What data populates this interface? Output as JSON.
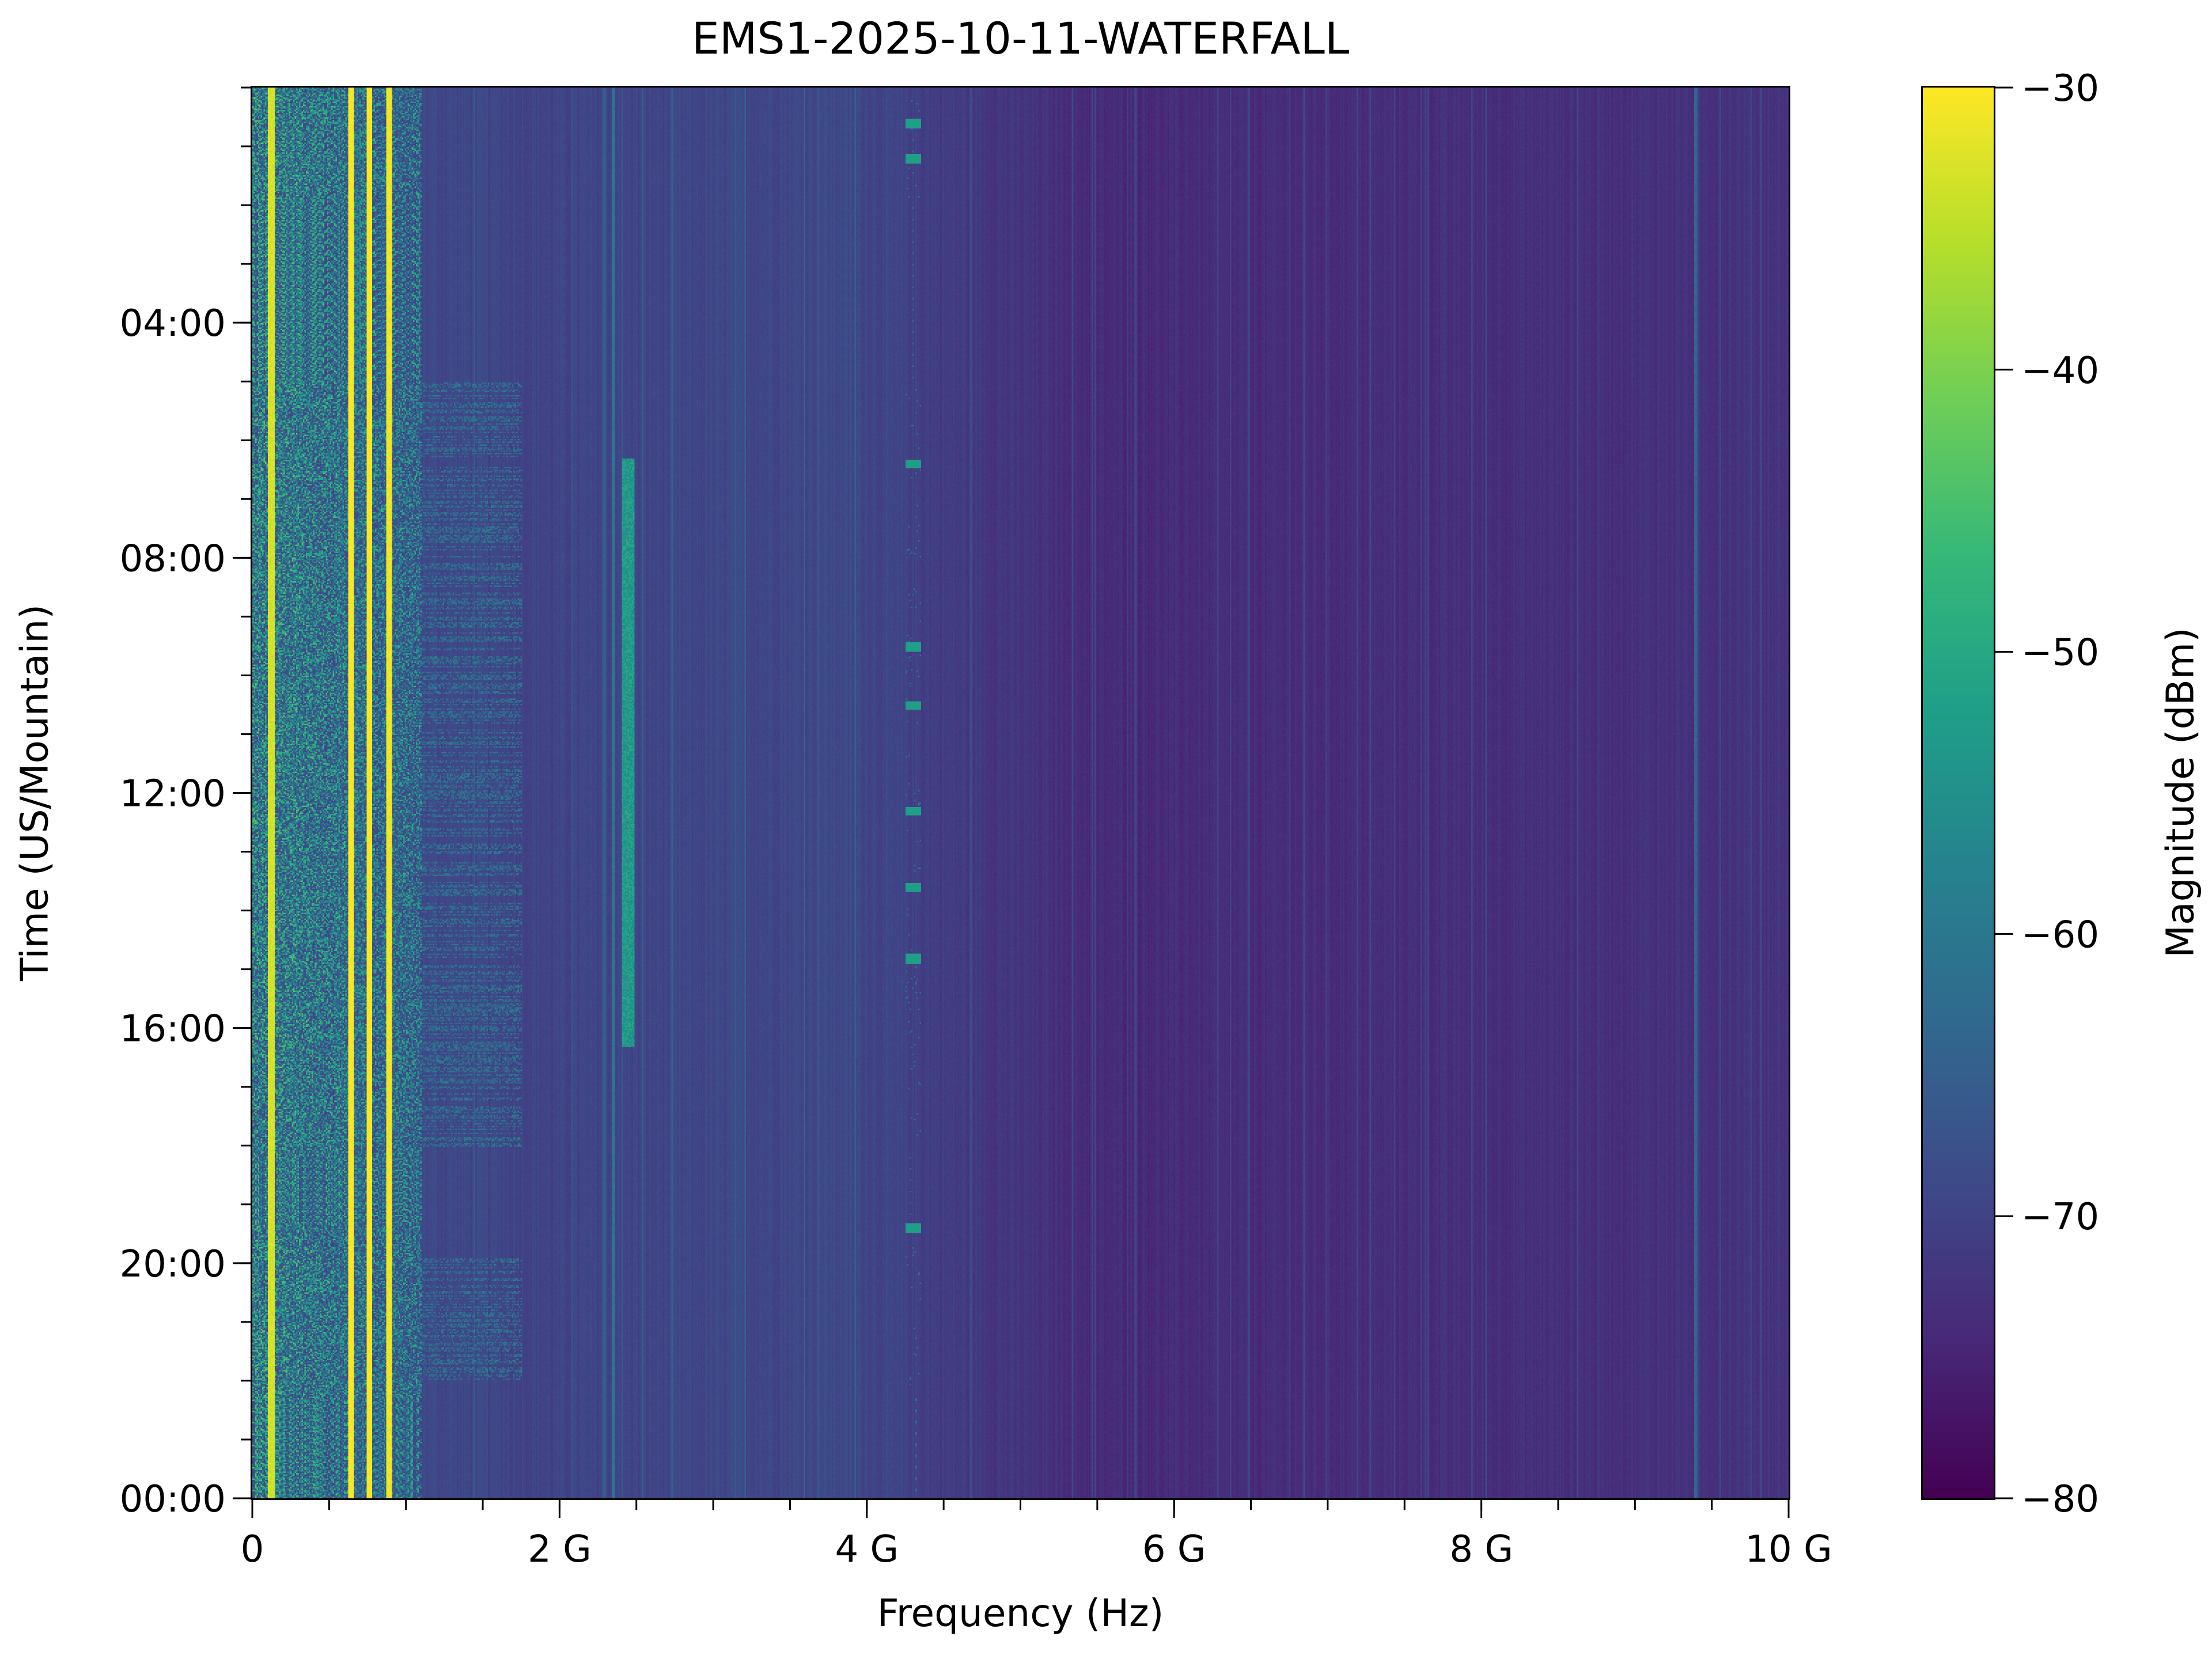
{
  "chart_data": {
    "type": "heatmap",
    "title": "EMS1-2025-10-11-WATERFALL",
    "xlabel": "Frequency (Hz)",
    "ylabel": "Time (US/Mountain)",
    "xlim": [
      0,
      10000000000
    ],
    "ylim_hours": [
      24,
      0
    ],
    "x_ticks": [
      {
        "value": 0,
        "label": "0"
      },
      {
        "value": 2000000000,
        "label": "2 G"
      },
      {
        "value": 4000000000,
        "label": "4 G"
      },
      {
        "value": 6000000000,
        "label": "6 G"
      },
      {
        "value": 8000000000,
        "label": "8 G"
      },
      {
        "value": 10000000000,
        "label": "10 G"
      }
    ],
    "x_minor_step": 500000000,
    "y_ticks": [
      {
        "hour": 4,
        "label": "04:00"
      },
      {
        "hour": 8,
        "label": "08:00"
      },
      {
        "hour": 12,
        "label": "12:00"
      },
      {
        "hour": 16,
        "label": "16:00"
      },
      {
        "hour": 20,
        "label": "20:00"
      },
      {
        "hour": 24,
        "label": "00:00"
      }
    ],
    "y_minor_step_hours": 1,
    "colorbar": {
      "label": "Magnitude (dBm)",
      "colormap": "viridis",
      "range": [
        -80,
        -30
      ],
      "ticks": [
        {
          "value": -30,
          "label": "−30"
        },
        {
          "value": -40,
          "label": "−40"
        },
        {
          "value": -50,
          "label": "−50"
        },
        {
          "value": -60,
          "label": "−60"
        },
        {
          "value": -70,
          "label": "−70"
        },
        {
          "value": -80,
          "label": "−80"
        }
      ]
    },
    "noise_floor_dbm": [
      {
        "freq_ghz": 0,
        "dbm": -68
      },
      {
        "freq_ghz": 2,
        "dbm": -70
      },
      {
        "freq_ghz": 3.8,
        "dbm": -69
      },
      {
        "freq_ghz": 5.5,
        "dbm": -74
      },
      {
        "freq_ghz": 7.5,
        "dbm": -73.5
      },
      {
        "freq_ghz": 9,
        "dbm": -73
      },
      {
        "freq_ghz": 10,
        "dbm": -72.5
      }
    ],
    "features": [
      {
        "desc": "broadband activity",
        "freq_ghz": [
          0,
          1.1
        ],
        "hours": [
          0,
          24
        ],
        "dbm": -52
      },
      {
        "desc": "intermittent activity",
        "freq_ghz": [
          1.1,
          1.75
        ],
        "hours": [
          5,
          18
        ],
        "dbm": -62
      },
      {
        "desc": "intermittent activity",
        "freq_ghz": [
          1.1,
          1.75
        ],
        "hours": [
          19.9,
          22
        ],
        "dbm": -62
      },
      {
        "desc": "continuous carrier",
        "freq_ghz": [
          0.1,
          0.14
        ],
        "hours": [
          0,
          24
        ],
        "dbm": -33
      },
      {
        "desc": "continuous carrier",
        "freq_ghz": [
          0.62,
          0.66
        ],
        "hours": [
          0,
          24
        ],
        "dbm": -30
      },
      {
        "desc": "continuous carrier",
        "freq_ghz": [
          0.74,
          0.78
        ],
        "hours": [
          0,
          24
        ],
        "dbm": -30
      },
      {
        "desc": "continuous carrier",
        "freq_ghz": [
          0.87,
          0.9
        ],
        "hours": [
          0,
          24
        ],
        "dbm": -31
      },
      {
        "desc": "continuous line",
        "freq_ghz": [
          2.34,
          2.355
        ],
        "hours": [
          0,
          24
        ],
        "dbm": -60
      },
      {
        "desc": "daytime band",
        "freq_ghz": [
          2.4,
          2.48
        ],
        "hours": [
          6.3,
          16.3
        ],
        "dbm": -53
      },
      {
        "desc": "bursts",
        "freq_ghz": [
          4.25,
          4.35
        ],
        "hours": [
          0.6,
          1.2,
          6.4,
          9.5,
          10.5,
          12.3,
          13.6,
          14.8,
          19.4
        ],
        "dbm": -52
      },
      {
        "desc": "weak line",
        "freq_ghz": [
          9.38,
          9.4
        ],
        "hours": [
          0,
          24
        ],
        "dbm": -64
      }
    ]
  }
}
